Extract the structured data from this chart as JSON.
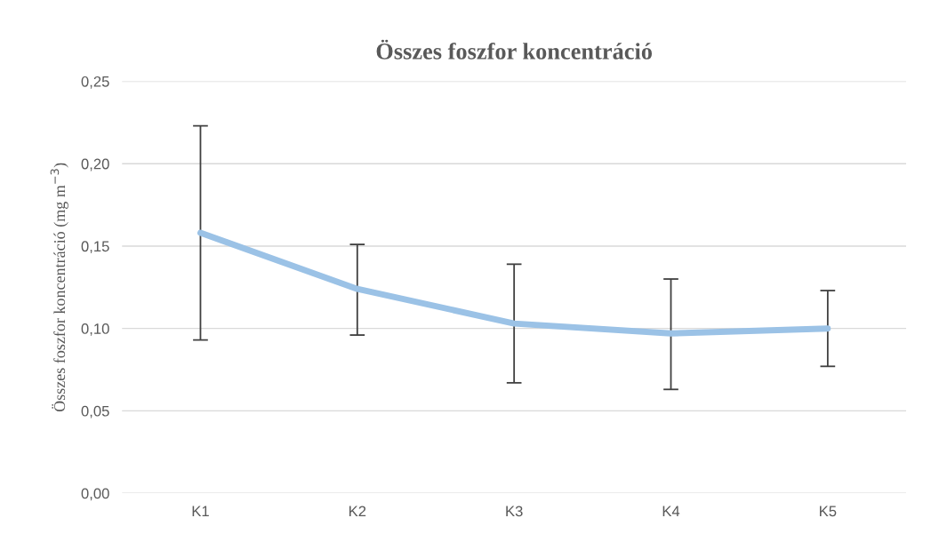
{
  "chart_data": {
    "type": "line",
    "title": "Összes foszfor koncentráció",
    "ylabel": "Összes foszfor koncentráció (mg m$^{−3}$)",
    "categories": [
      "K1",
      "K2",
      "K3",
      "K4",
      "K5"
    ],
    "series": [
      {
        "color": "#9bc2e6",
        "values": [
          0.158,
          0.124,
          0.103,
          0.097,
          0.1
        ],
        "errors": [
          [
            0.093,
            0.223
          ],
          [
            0.096,
            0.151
          ],
          [
            0.067,
            0.139
          ],
          [
            0.063,
            0.13
          ],
          [
            0.077,
            0.123
          ]
        ]
      }
    ],
    "ylim": [
      0,
      0.25
    ],
    "yticks": [
      {
        "value": 0,
        "label": "0,00"
      },
      {
        "value": 0.05,
        "label": "0,05"
      },
      {
        "value": 0.1,
        "label": "0,10"
      },
      {
        "value": 0.15,
        "label": "0,15"
      },
      {
        "value": 0.2,
        "label": "0,20"
      },
      {
        "value": 0.25,
        "label": "0,25"
      }
    ],
    "grid": "y",
    "marker": "none",
    "line_style": "solid"
  }
}
